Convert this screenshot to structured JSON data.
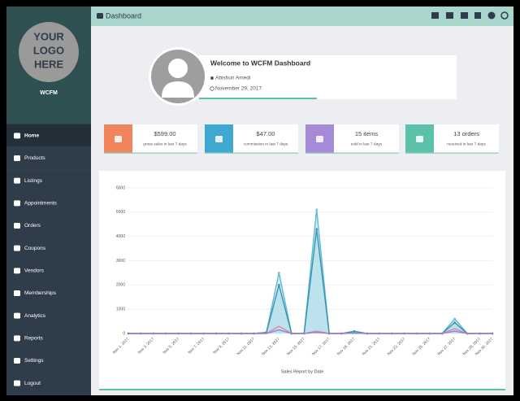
{
  "header": {
    "title": "Dashboard"
  },
  "sidebar": {
    "logo_lines": [
      "YOUR",
      "LOGO",
      "HERE"
    ],
    "store_name": "WCFM",
    "menu": [
      "Home",
      "Products",
      "Listings",
      "Appointments",
      "Orders",
      "Coupons",
      "Vendors",
      "Memberships",
      "Analytics",
      "Reports",
      "Settings",
      "Logout"
    ]
  },
  "welcome": {
    "title": "Welcome to WCFM Dashboard",
    "user": "Abishun Amedi",
    "date": "November 29, 2017"
  },
  "stats": [
    {
      "value": "$599.00",
      "label": "gross sales in last 7 days",
      "color": "#f0845c"
    },
    {
      "value": "$47.00",
      "label": "commission in last 7 days",
      "color": "#3fa8d0"
    },
    {
      "value": "15 items",
      "label": "sold in last 7 days",
      "color": "#a58ad8"
    },
    {
      "value": "13 orders",
      "label": "received in last 7 days",
      "color": "#5cc1ab"
    }
  ],
  "chart_data": {
    "type": "line",
    "x_label": "Sales Report by Date",
    "categories": [
      "Nov 1, 2017",
      null,
      "Nov 3, 2017",
      null,
      "Nov 5, 2017",
      null,
      "Nov 7, 2017",
      null,
      "Nov 9, 2017",
      null,
      "Nov 11, 2017",
      null,
      "Nov 13, 2017",
      null,
      "Nov 15, 2017",
      null,
      "Nov 17, 2017",
      null,
      "Nov 19, 2017",
      null,
      "Nov 21, 2017",
      null,
      "Nov 23, 2017",
      null,
      "Nov 25, 2017",
      null,
      "Nov 27, 2017",
      null,
      "Nov 29, 2017",
      "Nov 30, 2017"
    ],
    "series": [
      {
        "color": "#5bb8d6",
        "fill": "#b7e1ef",
        "values": [
          0,
          0,
          0,
          0,
          0,
          0,
          0,
          0,
          0,
          0,
          0,
          50,
          2500,
          0,
          0,
          5100,
          0,
          0,
          100,
          0,
          0,
          0,
          0,
          0,
          0,
          0,
          600,
          0,
          0,
          0
        ]
      },
      {
        "color": "#3a93a8",
        "fill": "#a6d7e6",
        "values": [
          0,
          0,
          0,
          0,
          0,
          0,
          0,
          0,
          0,
          0,
          0,
          40,
          2000,
          0,
          0,
          4300,
          0,
          0,
          80,
          0,
          0,
          0,
          0,
          0,
          0,
          0,
          450,
          0,
          0,
          0
        ]
      },
      {
        "color": "#e57fa8",
        "values": [
          0,
          0,
          0,
          0,
          0,
          0,
          0,
          0,
          0,
          0,
          0,
          0,
          300,
          0,
          0,
          100,
          0,
          0,
          20,
          0,
          0,
          0,
          0,
          0,
          0,
          0,
          200,
          0,
          0,
          0
        ]
      },
      {
        "color": "#9b7fd0",
        "values": [
          0,
          0,
          0,
          0,
          0,
          0,
          0,
          0,
          0,
          0,
          0,
          0,
          150,
          0,
          0,
          50,
          0,
          0,
          10,
          0,
          0,
          0,
          0,
          0,
          0,
          0,
          100,
          0,
          0,
          0
        ]
      }
    ],
    "ylim": [
      0,
      6000
    ],
    "yticks": [
      0,
      1000,
      2000,
      3000,
      4000,
      5000,
      6000
    ],
    "grid": true
  }
}
